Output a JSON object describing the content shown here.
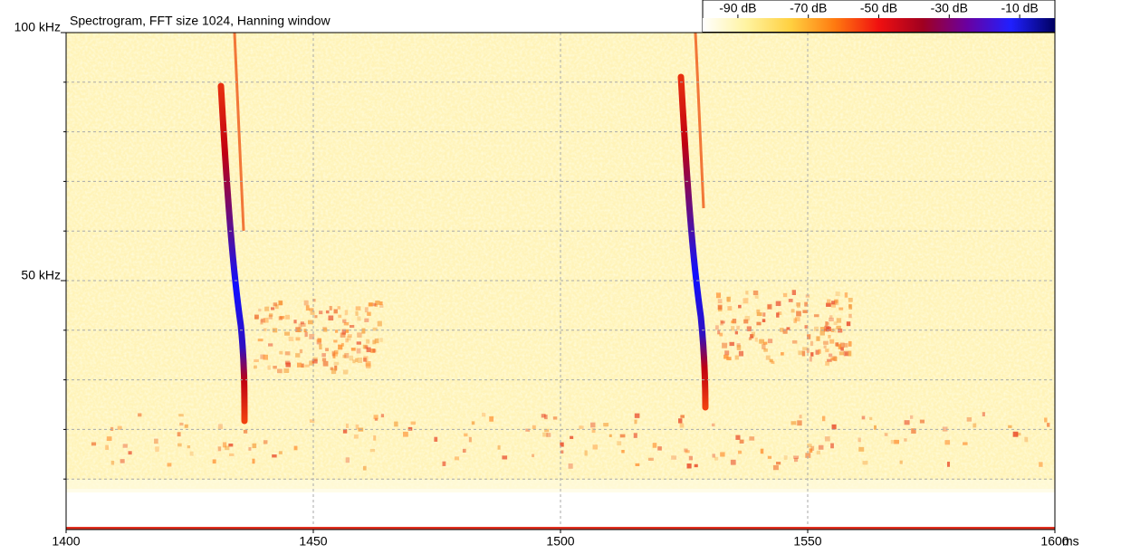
{
  "chart_data": {
    "type": "spectrogram",
    "title": "Spectrogram, FFT size 1024, Hanning window",
    "xlim": [
      1400,
      1600
    ],
    "xticks": [
      1400,
      1450,
      1500,
      1550,
      1600
    ],
    "x_unit": "ms",
    "ylim": [
      0,
      100
    ],
    "yticks": [
      {
        "value": 100,
        "label": "100 kHz"
      },
      {
        "value": 50,
        "label": "50 kHz"
      }
    ],
    "y_minor_ticks": [
      10,
      20,
      30,
      40,
      60,
      70,
      80,
      90
    ],
    "grid": true,
    "colorbar": {
      "lim": [
        -100,
        0
      ],
      "ticks": [
        {
          "value": -90,
          "label": "-90 dB"
        },
        {
          "value": -70,
          "label": "-70 dB"
        },
        {
          "value": -50,
          "label": "-50 dB"
        },
        {
          "value": -30,
          "label": "-30 dB"
        },
        {
          "value": -10,
          "label": "-10 dB"
        }
      ],
      "colors": [
        "#ffffff",
        "#fff3a0",
        "#ffd040",
        "#ff7a10",
        "#f01010",
        "#a00020",
        "#6a00a0",
        "#2020ff",
        "#000060"
      ]
    }
  }
}
